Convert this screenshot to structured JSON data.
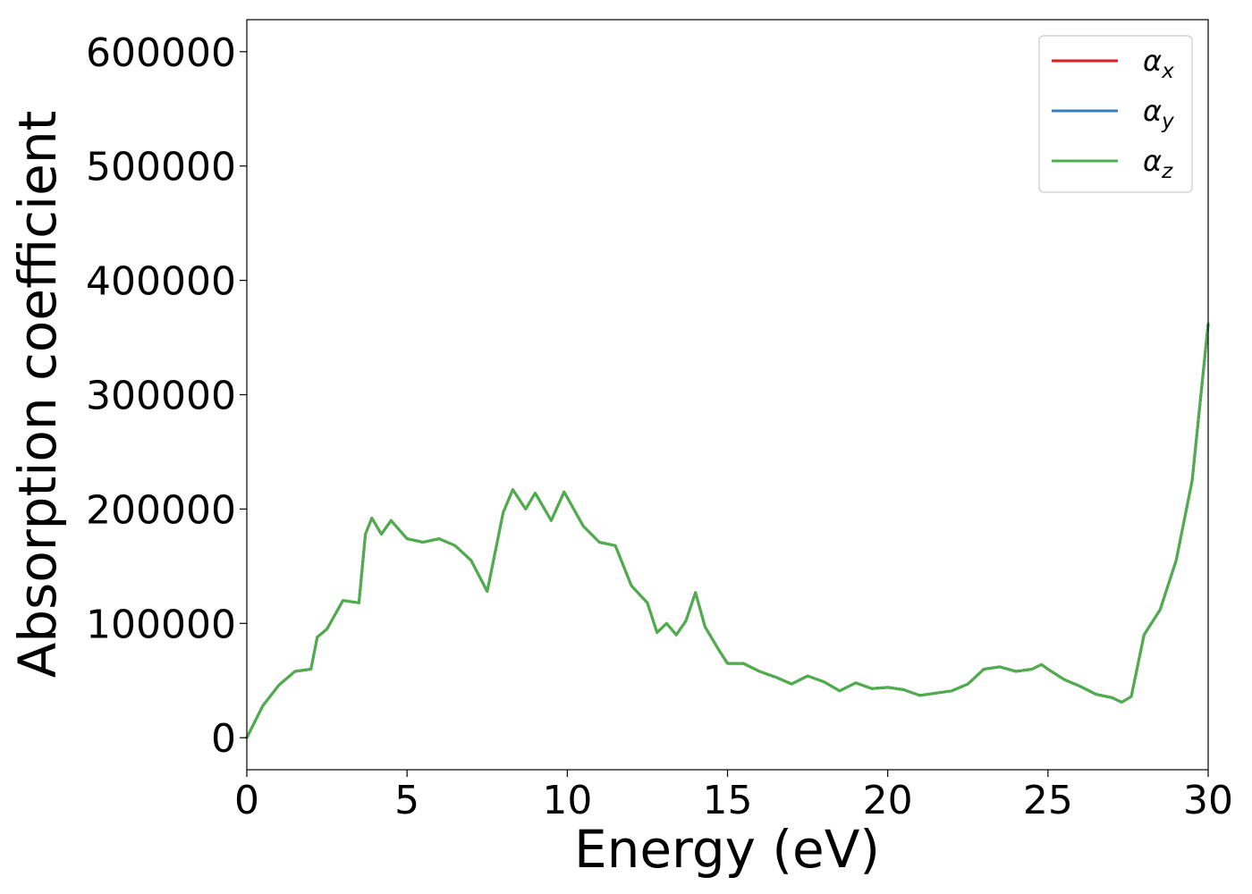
{
  "chart_data": {
    "type": "line",
    "title": "",
    "xlabel": "Energy (eV)",
    "ylabel": "Absorption coefficient",
    "xlim": [
      0,
      30
    ],
    "ylim": [
      -28000,
      628000
    ],
    "xticks": [
      0,
      5,
      10,
      15,
      20,
      25,
      30
    ],
    "xtick_labels": [
      "0",
      "5",
      "10",
      "15",
      "20",
      "25",
      "30"
    ],
    "yticks": [
      0,
      100000,
      200000,
      300000,
      400000,
      500000,
      600000
    ],
    "ytick_labels": [
      "0",
      "100000",
      "200000",
      "300000",
      "400000",
      "500000",
      "600000"
    ],
    "grid": false,
    "legend_position": "top-right",
    "x": [
      0,
      0.5,
      1.0,
      1.5,
      2.0,
      2.2,
      2.5,
      3.0,
      3.5,
      3.7,
      3.9,
      4.2,
      4.5,
      5.0,
      5.5,
      6.0,
      6.5,
      7.0,
      7.5,
      8.0,
      8.3,
      8.7,
      9.0,
      9.5,
      9.9,
      10.5,
      11.0,
      11.5,
      12.0,
      12.5,
      12.8,
      13.1,
      13.4,
      13.7,
      14.0,
      14.3,
      14.7,
      15.0,
      15.5,
      16.0,
      16.5,
      17.0,
      17.5,
      18.0,
      18.5,
      19.0,
      19.5,
      20.0,
      20.5,
      21.0,
      21.5,
      22.0,
      22.5,
      23.0,
      23.5,
      24.0,
      24.5,
      24.8,
      25.0,
      25.5,
      26.0,
      26.5,
      27.0,
      27.3,
      27.6,
      28.0,
      28.5,
      29.0,
      29.5,
      30.0
    ],
    "series": [
      {
        "name": "α_x",
        "color": "#e41a1c",
        "values": [
          0,
          28000,
          46000,
          58000,
          60000,
          88000,
          95000,
          120000,
          118000,
          178000,
          192000,
          178000,
          190000,
          174000,
          171000,
          174000,
          168000,
          155000,
          128000,
          197000,
          217000,
          200000,
          214000,
          190000,
          215000,
          185000,
          171000,
          168000,
          133000,
          118000,
          92000,
          100000,
          90000,
          102000,
          127000,
          97000,
          78000,
          65000,
          65000,
          58000,
          53000,
          47000,
          54000,
          49000,
          41000,
          48000,
          43000,
          44000,
          42000,
          37000,
          39000,
          41000,
          47000,
          60000,
          62000,
          58000,
          60000,
          64000,
          60000,
          51000,
          45000,
          38000,
          35000,
          31000,
          36000,
          90000,
          112000,
          155000,
          225000,
          362000
        ]
      },
      {
        "name": "α_y",
        "color": "#377eb8",
        "values": [
          0,
          28000,
          46000,
          58000,
          60000,
          88000,
          95000,
          120000,
          118000,
          178000,
          192000,
          178000,
          190000,
          174000,
          171000,
          174000,
          168000,
          155000,
          128000,
          197000,
          217000,
          200000,
          214000,
          190000,
          215000,
          185000,
          171000,
          168000,
          133000,
          118000,
          92000,
          100000,
          90000,
          102000,
          127000,
          97000,
          78000,
          65000,
          65000,
          58000,
          53000,
          47000,
          54000,
          49000,
          41000,
          48000,
          43000,
          44000,
          42000,
          37000,
          39000,
          41000,
          47000,
          60000,
          62000,
          58000,
          60000,
          64000,
          60000,
          51000,
          45000,
          38000,
          35000,
          31000,
          36000,
          90000,
          112000,
          155000,
          225000,
          362000
        ]
      },
      {
        "name": "α_z",
        "color": "#4daf4a",
        "values": [
          0,
          28000,
          46000,
          58000,
          60000,
          88000,
          95000,
          120000,
          118000,
          178000,
          192000,
          178000,
          190000,
          174000,
          171000,
          174000,
          168000,
          155000,
          128000,
          197000,
          217000,
          200000,
          214000,
          190000,
          215000,
          185000,
          171000,
          168000,
          133000,
          118000,
          92000,
          100000,
          90000,
          102000,
          127000,
          97000,
          78000,
          65000,
          65000,
          58000,
          53000,
          47000,
          54000,
          49000,
          41000,
          48000,
          43000,
          44000,
          42000,
          37000,
          39000,
          41000,
          47000,
          60000,
          62000,
          58000,
          60000,
          64000,
          60000,
          51000,
          45000,
          38000,
          35000,
          31000,
          36000,
          90000,
          112000,
          155000,
          225000,
          362000
        ]
      }
    ],
    "legend": [
      {
        "symbol": "α",
        "sub": "x",
        "color": "#e41a1c"
      },
      {
        "symbol": "α",
        "sub": "y",
        "color": "#377eb8"
      },
      {
        "symbol": "α",
        "sub": "z",
        "color": "#4daf4a"
      }
    ]
  }
}
